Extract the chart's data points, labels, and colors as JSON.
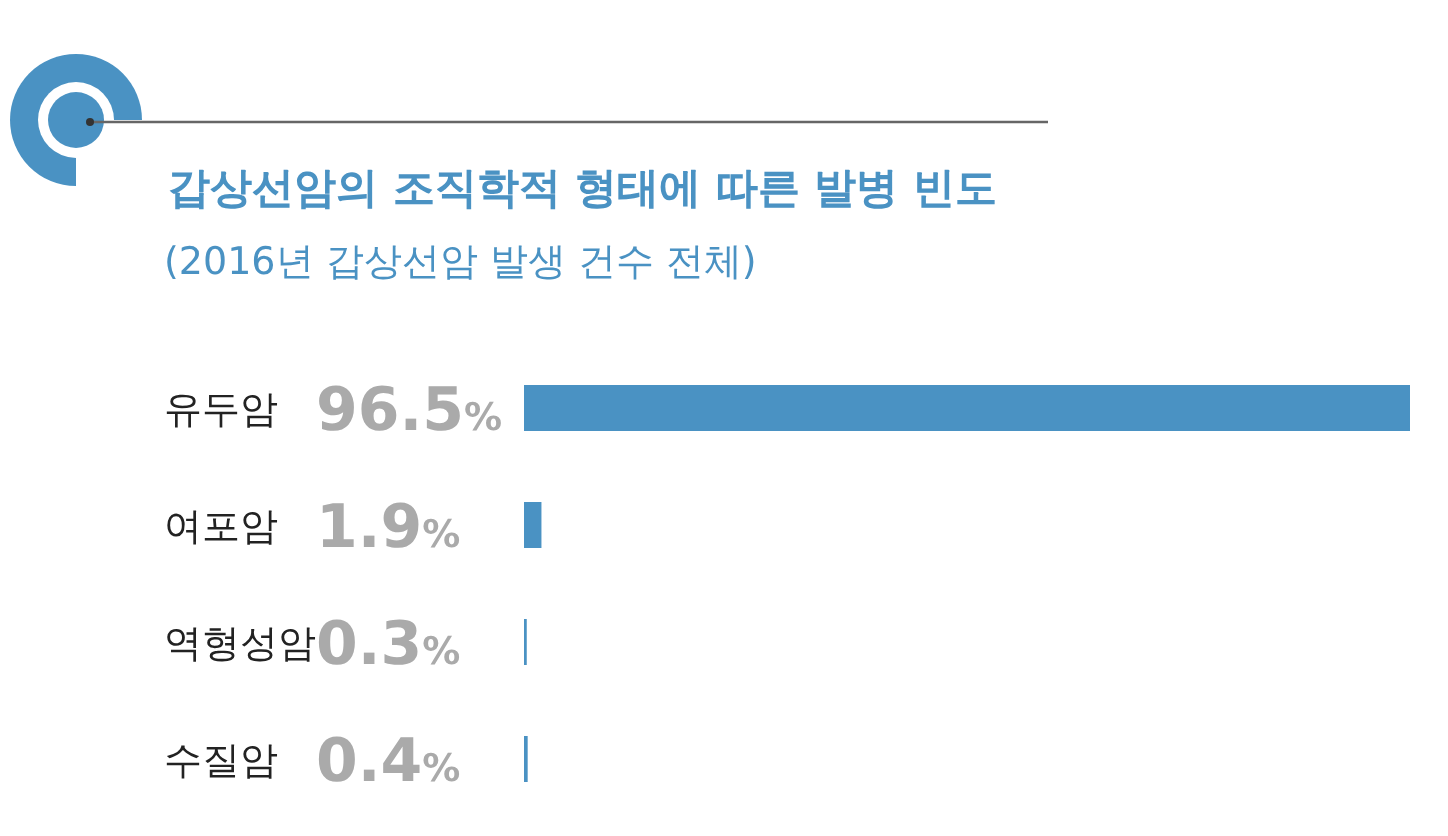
{
  "chart_data": {
    "type": "bar",
    "orientation": "horizontal",
    "title": "갑상선암의 조직학적 형태에 따른 발병 빈도",
    "subtitle": "(2016년 갑상선암 발생 건수 전체)",
    "categories": [
      "유두암",
      "여포암",
      "역형성암",
      "수질암"
    ],
    "values": [
      96.5,
      1.9,
      0.3,
      0.4
    ],
    "value_labels": [
      "96.5%",
      "1.9%",
      "0.3%",
      "0.4%"
    ],
    "color": "#4a92c3"
  }
}
